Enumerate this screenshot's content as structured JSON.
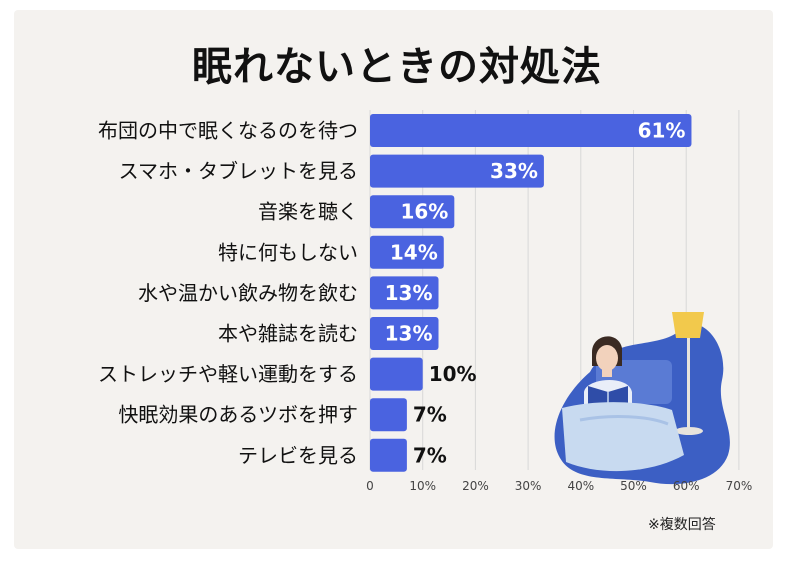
{
  "title": "眠れないときの対処法",
  "note": "※複数回答",
  "colors": {
    "bar": "#4a63e0",
    "background": "#f4f2ef",
    "grid": "#d8d8d8",
    "illustration_dark": "#3c5fc4",
    "illustration_light": "#c8daf0"
  },
  "chart_data": {
    "type": "bar",
    "orientation": "horizontal",
    "categories": [
      "布団の中で眠くなるのを待つ",
      "スマホ・タブレットを見る",
      "音楽を聴く",
      "特に何もしない",
      "水や温かい飲み物を飲む",
      "本や雑誌を読む",
      "ストレッチや軽い運動をする",
      "快眠効果のあるツボを押す",
      "テレビを見る"
    ],
    "values": [
      61,
      33,
      16,
      14,
      13,
      13,
      10,
      7,
      7
    ],
    "value_labels": [
      "61%",
      "33%",
      "16%",
      "14%",
      "13%",
      "13%",
      "10%",
      "7%",
      "7%"
    ],
    "xlim": [
      0,
      70
    ],
    "xticks": [
      "0",
      "10%",
      "20%",
      "30%",
      "40%",
      "50%",
      "60%",
      "70%"
    ],
    "grid": true
  }
}
